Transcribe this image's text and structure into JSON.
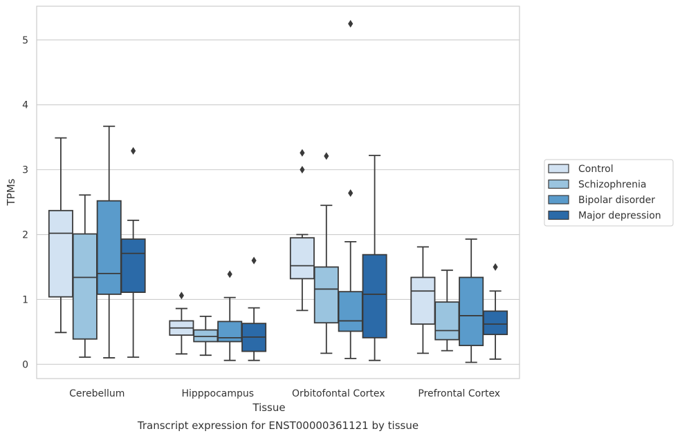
{
  "chart_data": {
    "type": "box",
    "xlabel": "Tissue",
    "ylabel": "TPMs",
    "caption": "Transcript expression for ENST00000361121 by tissue",
    "ylim": [
      -0.22,
      5.52
    ],
    "yticks": [
      0,
      1,
      2,
      3,
      4,
      5
    ],
    "grid": "horizontal",
    "legend_position": "right",
    "categories": [
      "Cerebellum",
      "Hipppocampus",
      "Orbitofontal Cortex",
      "Prefrontal Cortex"
    ],
    "series": [
      {
        "name": "Control",
        "color": "#d2e2f2",
        "boxes": [
          {
            "whislo": 0.49,
            "q1": 1.04,
            "med": 2.02,
            "q3": 2.37,
            "whishi": 3.49,
            "fliers": []
          },
          {
            "whislo": 0.16,
            "q1": 0.45,
            "med": 0.56,
            "q3": 0.67,
            "whishi": 0.86,
            "fliers": [
              1.06
            ]
          },
          {
            "whislo": 0.83,
            "q1": 1.32,
            "med": 1.52,
            "q3": 1.95,
            "whishi": 2.0,
            "fliers": [
              3.0,
              3.26
            ]
          },
          {
            "whislo": 0.17,
            "q1": 0.62,
            "med": 1.13,
            "q3": 1.34,
            "whishi": 1.81,
            "fliers": []
          }
        ]
      },
      {
        "name": "Schizophrenia",
        "color": "#9ac4df",
        "boxes": [
          {
            "whislo": 0.11,
            "q1": 0.39,
            "med": 1.34,
            "q3": 2.01,
            "whishi": 2.61,
            "fliers": []
          },
          {
            "whislo": 0.14,
            "q1": 0.35,
            "med": 0.43,
            "q3": 0.53,
            "whishi": 0.74,
            "fliers": []
          },
          {
            "whislo": 0.17,
            "q1": 0.64,
            "med": 1.16,
            "q3": 1.5,
            "whishi": 2.45,
            "fliers": [
              3.21
            ]
          },
          {
            "whislo": 0.21,
            "q1": 0.38,
            "med": 0.52,
            "q3": 0.96,
            "whishi": 1.45,
            "fliers": []
          }
        ]
      },
      {
        "name": "Bipolar disorder",
        "color": "#5a9bcb",
        "boxes": [
          {
            "whislo": 0.1,
            "q1": 1.08,
            "med": 1.4,
            "q3": 2.52,
            "whishi": 3.67,
            "fliers": []
          },
          {
            "whislo": 0.06,
            "q1": 0.35,
            "med": 0.41,
            "q3": 0.66,
            "whishi": 1.03,
            "fliers": [
              1.39
            ]
          },
          {
            "whislo": 0.09,
            "q1": 0.51,
            "med": 0.67,
            "q3": 1.12,
            "whishi": 1.89,
            "fliers": [
              2.64,
              5.25
            ]
          },
          {
            "whislo": 0.03,
            "q1": 0.29,
            "med": 0.75,
            "q3": 1.34,
            "whishi": 1.93,
            "fliers": []
          }
        ]
      },
      {
        "name": "Major depression",
        "color": "#2b6aa8",
        "boxes": [
          {
            "whislo": 0.11,
            "q1": 1.11,
            "med": 1.71,
            "q3": 1.93,
            "whishi": 2.22,
            "fliers": [
              3.29
            ]
          },
          {
            "whislo": 0.06,
            "q1": 0.2,
            "med": 0.42,
            "q3": 0.63,
            "whishi": 0.87,
            "fliers": [
              1.6
            ]
          },
          {
            "whislo": 0.06,
            "q1": 0.41,
            "med": 1.08,
            "q3": 1.69,
            "whishi": 3.22,
            "fliers": []
          },
          {
            "whislo": 0.08,
            "q1": 0.46,
            "med": 0.62,
            "q3": 0.82,
            "whishi": 1.13,
            "fliers": [
              1.5
            ]
          }
        ]
      }
    ]
  }
}
